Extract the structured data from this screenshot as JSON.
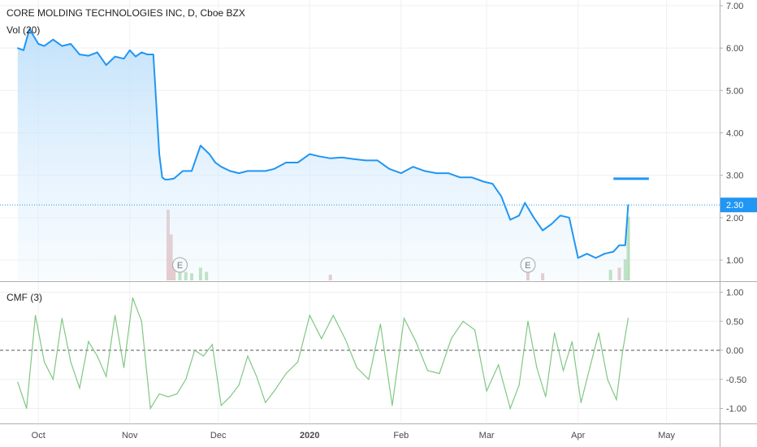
{
  "header": {
    "title": "CORE MOLDING TECHNOLOGIES INC, D, Cboe BZX",
    "vol_label": "Vol (20)",
    "cmf_label": "CMF (3)"
  },
  "colors": {
    "price_line": "#2196f3",
    "area_fill_top": "#bbdefb",
    "vol_up": "#a5d6a7",
    "vol_down": "#e0b4b4",
    "cmf_line": "#81c784",
    "grid": "#eef0f3",
    "axis": "#b0b0b0",
    "last_price_bg": "#2196f3"
  },
  "chart_data": [
    {
      "type": "area",
      "name": "price",
      "ylim": [
        0.5,
        7.0
      ],
      "y_ticks": [
        "7.00",
        "6.00",
        "5.00",
        "4.00",
        "3.00",
        "2.00",
        "1.00"
      ],
      "y_tick_values": [
        7,
        6,
        5,
        4,
        3,
        2,
        1
      ],
      "x_ticks": [
        "Oct",
        "Nov",
        "Dec",
        "2020",
        "Feb",
        "Mar",
        "Apr",
        "May"
      ],
      "x_tick_dates": [
        "2019-10-01",
        "2019-11-01",
        "2019-12-01",
        "2020-01-01",
        "2020-02-01",
        "2020-03-01",
        "2020-04-01",
        "2020-05-01"
      ],
      "last_price": "2.30",
      "last_value": 2.3,
      "dates": [
        "2019-09-24",
        "2019-09-26",
        "2019-09-28",
        "2019-10-01",
        "2019-10-03",
        "2019-10-06",
        "2019-10-09",
        "2019-10-12",
        "2019-10-15",
        "2019-10-18",
        "2019-10-21",
        "2019-10-24",
        "2019-10-27",
        "2019-10-30",
        "2019-11-01",
        "2019-11-03",
        "2019-11-05",
        "2019-11-07",
        "2019-11-09",
        "2019-11-11",
        "2019-11-12",
        "2019-11-13",
        "2019-11-14",
        "2019-11-16",
        "2019-11-19",
        "2019-11-22",
        "2019-11-25",
        "2019-11-28",
        "2019-11-30",
        "2019-12-02",
        "2019-12-05",
        "2019-12-08",
        "2019-12-11",
        "2019-12-14",
        "2019-12-17",
        "2019-12-20",
        "2019-12-24",
        "2019-12-28",
        "2020-01-01",
        "2020-01-04",
        "2020-01-08",
        "2020-01-12",
        "2020-01-16",
        "2020-01-20",
        "2020-01-24",
        "2020-01-28",
        "2020-02-01",
        "2020-02-05",
        "2020-02-09",
        "2020-02-13",
        "2020-02-17",
        "2020-02-21",
        "2020-02-25",
        "2020-02-29",
        "2020-03-03",
        "2020-03-06",
        "2020-03-09",
        "2020-03-12",
        "2020-03-14",
        "2020-03-17",
        "2020-03-20",
        "2020-03-23",
        "2020-03-26",
        "2020-03-29",
        "2020-04-01",
        "2020-04-04",
        "2020-04-07",
        "2020-04-10",
        "2020-04-13",
        "2020-04-15",
        "2020-04-17",
        "2020-04-18"
      ],
      "values": [
        6.0,
        5.95,
        6.45,
        6.1,
        6.05,
        6.2,
        6.05,
        6.1,
        5.85,
        5.82,
        5.9,
        5.6,
        5.8,
        5.75,
        5.95,
        5.8,
        5.9,
        5.85,
        5.85,
        3.5,
        2.95,
        2.9,
        2.9,
        2.92,
        3.1,
        3.1,
        3.7,
        3.5,
        3.3,
        3.2,
        3.1,
        3.05,
        3.1,
        3.1,
        3.1,
        3.15,
        3.3,
        3.3,
        3.5,
        3.45,
        3.4,
        3.42,
        3.38,
        3.35,
        3.35,
        3.15,
        3.05,
        3.2,
        3.1,
        3.05,
        3.05,
        2.95,
        2.95,
        2.85,
        2.8,
        2.5,
        1.95,
        2.05,
        2.35,
        2.0,
        1.7,
        1.85,
        2.05,
        2.0,
        1.05,
        1.15,
        1.05,
        1.15,
        1.2,
        1.35,
        1.35,
        2.3
      ],
      "marker": {
        "start_date": "2020-04-13",
        "end_date": "2020-04-25",
        "value": 2.92
      }
    },
    {
      "type": "bar",
      "name": "volume",
      "dates": [
        "2019-11-14",
        "2019-11-15",
        "2019-11-16",
        "2019-11-18",
        "2019-11-20",
        "2019-11-22",
        "2019-11-25",
        "2019-11-27",
        "2020-01-08",
        "2020-03-15",
        "2020-03-20",
        "2020-04-12",
        "2020-04-15",
        "2020-04-17",
        "2020-04-18"
      ],
      "values": [
        100,
        65,
        25,
        18,
        12,
        10,
        18,
        12,
        8,
        20,
        10,
        15,
        18,
        30,
        90
      ],
      "up": [
        false,
        false,
        false,
        true,
        true,
        true,
        true,
        true,
        false,
        false,
        false,
        true,
        false,
        true,
        true
      ],
      "earnings_labels": [
        "E",
        "E"
      ],
      "earnings_dates": [
        "2019-11-18",
        "2020-03-15"
      ]
    },
    {
      "type": "line",
      "name": "cmf",
      "ylim": [
        -1.15,
        1.15
      ],
      "y_ticks": [
        "1.00",
        "0.50",
        "0.00",
        "-0.50",
        "-1.00"
      ],
      "y_tick_values": [
        1,
        0.5,
        0,
        -0.5,
        -1
      ],
      "zero_line": 0,
      "dates": [
        "2019-09-24",
        "2019-09-27",
        "2019-09-30",
        "2019-10-03",
        "2019-10-06",
        "2019-10-09",
        "2019-10-12",
        "2019-10-15",
        "2019-10-18",
        "2019-10-21",
        "2019-10-24",
        "2019-10-27",
        "2019-10-30",
        "2019-11-02",
        "2019-11-05",
        "2019-11-08",
        "2019-11-11",
        "2019-11-14",
        "2019-11-17",
        "2019-11-20",
        "2019-11-23",
        "2019-11-26",
        "2019-11-29",
        "2019-12-02",
        "2019-12-05",
        "2019-12-08",
        "2019-12-11",
        "2019-12-14",
        "2019-12-17",
        "2019-12-20",
        "2019-12-24",
        "2019-12-28",
        "2020-01-01",
        "2020-01-05",
        "2020-01-09",
        "2020-01-13",
        "2020-01-17",
        "2020-01-21",
        "2020-01-25",
        "2020-01-29",
        "2020-02-02",
        "2020-02-06",
        "2020-02-10",
        "2020-02-14",
        "2020-02-18",
        "2020-02-22",
        "2020-02-26",
        "2020-03-01",
        "2020-03-05",
        "2020-03-09",
        "2020-03-12",
        "2020-03-15",
        "2020-03-18",
        "2020-03-21",
        "2020-03-24",
        "2020-03-27",
        "2020-03-30",
        "2020-04-02",
        "2020-04-05",
        "2020-04-08",
        "2020-04-11",
        "2020-04-14",
        "2020-04-16",
        "2020-04-18"
      ],
      "values": [
        -0.55,
        -1.0,
        0.6,
        -0.2,
        -0.5,
        0.55,
        -0.2,
        -0.65,
        0.15,
        -0.1,
        -0.45,
        0.6,
        -0.3,
        0.9,
        0.5,
        -1.0,
        -0.75,
        -0.8,
        -0.75,
        -0.5,
        0.0,
        -0.1,
        0.1,
        -0.95,
        -0.8,
        -0.6,
        -0.1,
        -0.45,
        -0.9,
        -0.7,
        -0.4,
        -0.2,
        0.6,
        0.2,
        0.6,
        0.2,
        -0.3,
        -0.5,
        0.45,
        -0.95,
        0.55,
        0.15,
        -0.35,
        -0.4,
        0.2,
        0.5,
        0.35,
        -0.7,
        -0.25,
        -1.0,
        -0.6,
        0.5,
        -0.3,
        -0.8,
        0.3,
        -0.35,
        0.15,
        -0.9,
        -0.3,
        0.3,
        -0.5,
        -0.85,
        -0.05,
        0.55
      ]
    }
  ]
}
